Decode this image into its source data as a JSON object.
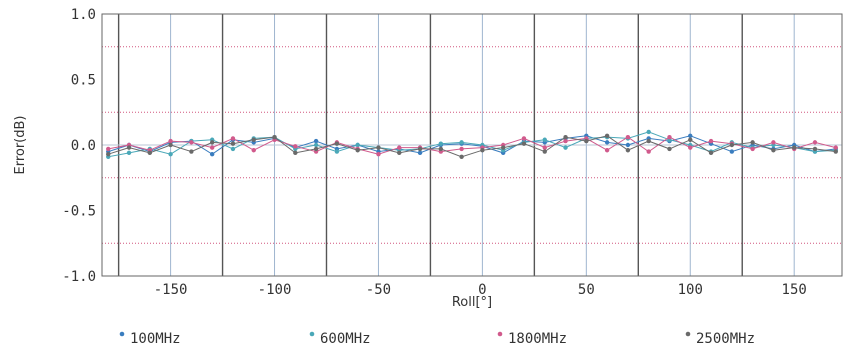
{
  "chart_data": {
    "type": "line",
    "title": "",
    "xlabel": "Roll[°]",
    "ylabel": "Error(dB)",
    "xlim": [
      -183,
      173
    ],
    "ylim": [
      -1.0,
      1.0
    ],
    "x_ticks": [
      -150,
      -100,
      -50,
      0,
      50,
      100,
      150
    ],
    "y_ticks": [
      -1.0,
      -0.5,
      0.0,
      0.5,
      1.0
    ],
    "x_tick_labels": [
      "-150",
      "-100",
      "-50",
      "0",
      "50",
      "100",
      "150"
    ],
    "y_tick_labels": [
      "-1.0",
      "-0.5",
      "0.0",
      "0.5",
      "1.0"
    ],
    "minor_y": [
      -0.75,
      -0.25,
      0.25,
      0.75
    ],
    "dark_x_lines": [
      -175,
      -125,
      -75,
      -25,
      25,
      75,
      125
    ],
    "grid": true,
    "legend_position": "bottom",
    "x": [
      -180,
      -170,
      -160,
      -150,
      -140,
      -130,
      -120,
      -110,
      -100,
      -90,
      -80,
      -70,
      -60,
      -50,
      -40,
      -30,
      -20,
      -10,
      0,
      10,
      20,
      30,
      40,
      50,
      60,
      70,
      80,
      90,
      100,
      110,
      120,
      130,
      140,
      150,
      160,
      170
    ],
    "series": [
      {
        "name": "100MHz",
        "color": "#3a7dbf",
        "values": [
          -0.05,
          0.0,
          -0.05,
          0.02,
          0.03,
          -0.07,
          0.04,
          0.02,
          0.05,
          -0.02,
          0.03,
          -0.03,
          0.0,
          -0.05,
          -0.03,
          -0.06,
          0.0,
          0.01,
          -0.01,
          -0.06,
          0.03,
          0.02,
          0.05,
          0.07,
          0.02,
          0.0,
          0.05,
          0.03,
          0.07,
          0.01,
          -0.05,
          0.0,
          -0.03,
          0.0,
          -0.05,
          -0.03
        ]
      },
      {
        "name": "600MHz",
        "color": "#4aa8b8",
        "values": [
          -0.09,
          -0.06,
          -0.03,
          -0.07,
          0.03,
          0.04,
          -0.03,
          0.05,
          0.06,
          -0.03,
          0.0,
          -0.05,
          0.0,
          -0.02,
          -0.04,
          -0.03,
          0.01,
          0.02,
          0.0,
          -0.04,
          0.02,
          0.04,
          -0.02,
          0.05,
          0.06,
          0.05,
          0.1,
          0.04,
          0.0,
          -0.05,
          0.02,
          -0.02,
          0.0,
          -0.02,
          -0.05,
          -0.04
        ]
      },
      {
        "name": "1800MHz",
        "color": "#d15a8c",
        "values": [
          -0.03,
          0.0,
          -0.04,
          0.03,
          0.02,
          -0.02,
          0.05,
          -0.04,
          0.04,
          -0.01,
          -0.05,
          0.02,
          -0.03,
          -0.07,
          -0.02,
          -0.02,
          -0.05,
          -0.03,
          -0.02,
          0.0,
          0.05,
          -0.02,
          0.03,
          0.05,
          -0.04,
          0.06,
          -0.05,
          0.06,
          -0.02,
          0.03,
          0.01,
          -0.03,
          0.02,
          -0.03,
          0.02,
          -0.02
        ]
      },
      {
        "name": "2500MHz",
        "color": "#6a6a6a",
        "values": [
          -0.07,
          -0.02,
          -0.06,
          0.0,
          -0.05,
          0.02,
          0.01,
          0.04,
          0.06,
          -0.06,
          -0.03,
          0.01,
          -0.04,
          -0.02,
          -0.06,
          -0.03,
          -0.03,
          -0.09,
          -0.04,
          -0.02,
          0.01,
          -0.05,
          0.06,
          0.03,
          0.07,
          -0.04,
          0.03,
          -0.03,
          0.04,
          -0.06,
          0.0,
          0.02,
          -0.04,
          -0.02,
          -0.03,
          -0.05
        ]
      }
    ]
  }
}
